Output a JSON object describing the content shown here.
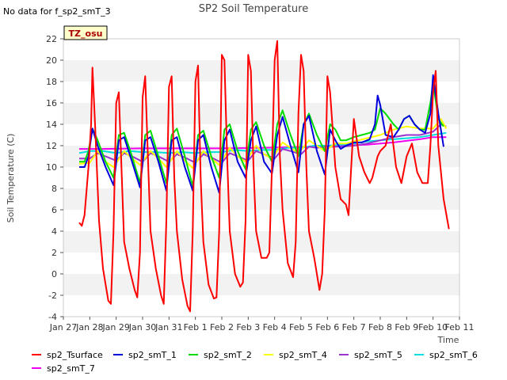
{
  "no_data_note": "No data for f_sp2_smT_3",
  "badge": "TZ_osu",
  "chart_data": {
    "type": "line",
    "title": "SP2 Soil Temperature",
    "xlabel": "Time",
    "ylabel": "Soil Temperature (C)",
    "ylim": [
      -4,
      22
    ],
    "xlim": [
      0,
      15
    ],
    "yticks": [
      -4,
      -2,
      0,
      2,
      4,
      6,
      8,
      10,
      12,
      14,
      16,
      18,
      20,
      22
    ],
    "xticks": [
      {
        "x": 0,
        "label": "Jan 27"
      },
      {
        "x": 1,
        "label": "Jan 28"
      },
      {
        "x": 2,
        "label": "Jan 29"
      },
      {
        "x": 3,
        "label": "Jan 30"
      },
      {
        "x": 4,
        "label": "Jan 31"
      },
      {
        "x": 5,
        "label": "Feb 1"
      },
      {
        "x": 6,
        "label": "Feb 2"
      },
      {
        "x": 7,
        "label": "Feb 3"
      },
      {
        "x": 8,
        "label": "Feb 4"
      },
      {
        "x": 9,
        "label": "Feb 5"
      },
      {
        "x": 10,
        "label": "Feb 6"
      },
      {
        "x": 11,
        "label": "Feb 7"
      },
      {
        "x": 12,
        "label": "Feb 8"
      },
      {
        "x": 13,
        "label": "Feb 9"
      },
      {
        "x": 14,
        "label": "Feb 10"
      },
      {
        "x": 15,
        "label": "Feb 11"
      }
    ],
    "grid": "horizontal bands",
    "legend_position": "bottom",
    "series": [
      {
        "name": "sp2_Tsurface",
        "color": "#ff0000",
        "x": [
          0.6,
          0.7,
          0.8,
          0.95,
          1.05,
          1.1,
          1.2,
          1.35,
          1.5,
          1.7,
          1.8,
          1.9,
          2.0,
          2.1,
          2.2,
          2.3,
          2.5,
          2.7,
          2.8,
          2.9,
          3.0,
          3.1,
          3.2,
          3.3,
          3.5,
          3.7,
          3.8,
          3.9,
          4.0,
          4.1,
          4.2,
          4.3,
          4.5,
          4.7,
          4.8,
          4.9,
          5.0,
          5.1,
          5.2,
          5.3,
          5.5,
          5.7,
          5.8,
          5.9,
          6.0,
          6.1,
          6.2,
          6.3,
          6.5,
          6.7,
          6.8,
          6.9,
          7.0,
          7.1,
          7.2,
          7.3,
          7.5,
          7.7,
          7.8,
          7.9,
          8.0,
          8.1,
          8.2,
          8.3,
          8.5,
          8.7,
          8.8,
          8.9,
          9.0,
          9.1,
          9.2,
          9.3,
          9.5,
          9.7,
          9.8,
          9.9,
          10.0,
          10.1,
          10.3,
          10.5,
          10.7,
          10.8,
          11.0,
          11.2,
          11.4,
          11.6,
          11.7,
          11.9,
          12.0,
          12.2,
          12.4,
          12.6,
          12.8,
          13.0,
          13.2,
          13.4,
          13.6,
          13.8,
          13.9,
          14.0,
          14.1,
          14.2,
          14.4,
          14.6
        ],
        "y": [
          4.8,
          4.5,
          5.5,
          10,
          14,
          19.3,
          14,
          5,
          0.5,
          -2.5,
          -2.8,
          4,
          16,
          17,
          10,
          3,
          0.5,
          -1.5,
          -2.2,
          2,
          16.5,
          18.5,
          11,
          4,
          0.5,
          -2,
          -2.8,
          5,
          17.5,
          18.5,
          9,
          4,
          -0.5,
          -3,
          -3.5,
          4,
          18,
          19.5,
          9,
          3,
          -1,
          -2.3,
          -2.2,
          4,
          20.5,
          20,
          11,
          4,
          0,
          -1.2,
          -0.8,
          5,
          20.5,
          19,
          10,
          4,
          1.5,
          1.5,
          2,
          10,
          20,
          21.8,
          11,
          6,
          1,
          -0.3,
          3,
          15,
          20.5,
          19,
          10,
          4,
          1.5,
          -1.5,
          0,
          6,
          18.5,
          17,
          10,
          7,
          6.5,
          5.5,
          14.5,
          11,
          9.5,
          8.5,
          9,
          11,
          11.5,
          12,
          14,
          10,
          8.5,
          11,
          12.2,
          9.5,
          8.5,
          8.5,
          12,
          17,
          19,
          12,
          7,
          4.2
        ]
      },
      {
        "name": "sp2_smT_1",
        "color": "#0000dd",
        "x": [
          0.6,
          0.8,
          0.95,
          1.1,
          1.3,
          1.6,
          1.9,
          2.1,
          2.3,
          2.6,
          2.9,
          3.1,
          3.3,
          3.6,
          3.9,
          4.1,
          4.3,
          4.6,
          4.9,
          5.1,
          5.3,
          5.6,
          5.9,
          6.1,
          6.3,
          6.6,
          6.9,
          7.1,
          7.3,
          7.6,
          7.9,
          8.1,
          8.3,
          8.6,
          8.9,
          9.1,
          9.3,
          9.6,
          9.9,
          10.1,
          10.3,
          10.5,
          10.7,
          11.0,
          11.3,
          11.6,
          11.8,
          11.9,
          12.0,
          12.2,
          12.5,
          12.7,
          12.9,
          13.1,
          13.3,
          13.5,
          13.7,
          13.9,
          14.0,
          14.2,
          14.4
        ],
        "y": [
          10,
          10,
          11,
          13.6,
          12,
          10,
          8.3,
          12.5,
          12.8,
          10.5,
          8.1,
          12.5,
          12.8,
          10.5,
          7.8,
          12.5,
          12.8,
          10,
          7.8,
          12.5,
          13,
          10,
          7.6,
          12.5,
          13.5,
          10.5,
          9,
          12.5,
          13.8,
          10.5,
          9.4,
          13,
          14.7,
          12,
          9.5,
          14,
          14.8,
          11.5,
          9.3,
          13.5,
          12.5,
          11.7,
          12,
          12.3,
          12.3,
          12.6,
          14,
          16.7,
          15.8,
          13,
          12.8,
          13.5,
          14.5,
          14.8,
          14,
          13.5,
          13.2,
          15,
          18.6,
          15,
          11.9
        ]
      },
      {
        "name": "sp2_smT_2",
        "color": "#00dd00",
        "x": [
          0.6,
          0.8,
          0.95,
          1.1,
          1.3,
          1.6,
          1.9,
          2.1,
          2.3,
          2.6,
          2.9,
          3.1,
          3.3,
          3.6,
          3.9,
          4.1,
          4.3,
          4.6,
          4.9,
          5.1,
          5.3,
          5.6,
          5.9,
          6.1,
          6.3,
          6.6,
          6.9,
          7.1,
          7.3,
          7.6,
          7.9,
          8.1,
          8.3,
          8.6,
          8.9,
          9.1,
          9.3,
          9.6,
          9.9,
          10.1,
          10.3,
          10.5,
          10.7,
          11.0,
          11.3,
          11.6,
          11.8,
          12.0,
          12.2,
          12.5,
          12.7,
          12.9,
          13.1,
          13.3,
          13.5,
          13.7,
          13.9,
          14.0,
          14.2,
          14.4
        ],
        "y": [
          10.5,
          10.5,
          11.5,
          13.6,
          12.5,
          10.5,
          9,
          13,
          13.2,
          11,
          8.5,
          13,
          13.4,
          11,
          8.5,
          13,
          13.6,
          11,
          8.2,
          13,
          13.4,
          11,
          9,
          13.5,
          14,
          11.5,
          9.8,
          13.5,
          14.2,
          12,
          10.5,
          14,
          15.3,
          13,
          11,
          14,
          15,
          13,
          11.5,
          14,
          13.5,
          12.5,
          12.5,
          12.8,
          13,
          13.2,
          13.5,
          15.5,
          15,
          14,
          13.5,
          14.5,
          14.8,
          14,
          13.5,
          13.5,
          16,
          17.9,
          14.5,
          13.8
        ]
      },
      {
        "name": "sp2_smT_4",
        "color": "#ffff00",
        "x": [
          0.6,
          1.0,
          1.3,
          1.6,
          1.9,
          2.3,
          2.6,
          2.9,
          3.3,
          3.6,
          3.9,
          4.3,
          4.6,
          4.9,
          5.3,
          5.6,
          5.9,
          6.3,
          6.6,
          6.9,
          7.3,
          7.6,
          7.9,
          8.3,
          8.6,
          8.9,
          9.3,
          9.6,
          9.9,
          10.3,
          10.7,
          11.0,
          11.5,
          12.0,
          12.5,
          13.0,
          13.5,
          14.0,
          14.3,
          14.5
        ],
        "y": [
          10.3,
          10.4,
          11.5,
          10.5,
          10,
          11.5,
          10.8,
          10.2,
          11.5,
          10.8,
          10,
          11.5,
          10.6,
          9.9,
          11.5,
          10.8,
          10.2,
          11.8,
          11,
          10.5,
          12,
          11.2,
          10.8,
          12.3,
          11.8,
          11.3,
          12.5,
          12,
          11.5,
          12.2,
          12.2,
          12.4,
          12.7,
          13,
          13.5,
          13.8,
          13.6,
          13.6,
          14.5,
          13.6
        ]
      },
      {
        "name": "sp2_smT_5",
        "color": "#9933cc",
        "x": [
          0.6,
          1.0,
          1.3,
          1.6,
          2.0,
          2.3,
          2.6,
          3.0,
          3.3,
          3.6,
          4.0,
          4.3,
          4.6,
          5.0,
          5.3,
          5.6,
          6.0,
          6.3,
          6.6,
          7.0,
          7.3,
          7.6,
          8.0,
          8.3,
          8.6,
          9.0,
          9.3,
          9.6,
          10.0,
          10.5,
          11.0,
          11.5,
          12.0,
          12.5,
          13.0,
          13.5,
          14.0,
          14.3,
          14.5
        ],
        "y": [
          10.8,
          10.8,
          11.3,
          11.0,
          10.6,
          11.3,
          11.0,
          10.5,
          11.3,
          11.0,
          10.5,
          11.2,
          10.9,
          10.4,
          11.2,
          10.9,
          10.4,
          11.3,
          11.0,
          10.6,
          11.5,
          11.2,
          10.8,
          11.7,
          11.5,
          11.2,
          11.9,
          11.8,
          11.9,
          11.9,
          12.0,
          12.2,
          12.5,
          12.8,
          13.0,
          13.0,
          13.3,
          14.0,
          13.8
        ]
      },
      {
        "name": "sp2_smT_6",
        "color": "#00dddd",
        "x": [
          0.6,
          1.0,
          1.5,
          2.0,
          2.5,
          3.0,
          3.5,
          4.0,
          4.5,
          5.0,
          5.5,
          6.0,
          6.5,
          7.0,
          7.5,
          8.0,
          8.5,
          9.0,
          9.5,
          10.0,
          10.5,
          11.0,
          11.5,
          12.0,
          12.5,
          13.0,
          13.5,
          14.0,
          14.5
        ],
        "y": [
          11.3,
          11.5,
          11.5,
          11.3,
          11.5,
          11.4,
          11.4,
          11.3,
          11.4,
          11.3,
          11.4,
          11.4,
          11.6,
          11.5,
          11.6,
          11.6,
          11.8,
          11.8,
          12.0,
          12.0,
          12.1,
          12.2,
          12.4,
          12.5,
          12.6,
          12.7,
          12.8,
          13.0,
          13.2
        ]
      },
      {
        "name": "sp2_smT_7",
        "color": "#ee00ee",
        "x": [
          0.6,
          1.5,
          3.0,
          4.5,
          6.0,
          7.5,
          8.5,
          9.5,
          10.5,
          11.5,
          12.5,
          13.5,
          14.0,
          14.5
        ],
        "y": [
          11.7,
          11.7,
          11.75,
          11.75,
          11.75,
          11.8,
          11.85,
          11.9,
          12.0,
          12.1,
          12.3,
          12.6,
          12.8,
          12.8
        ]
      }
    ]
  }
}
